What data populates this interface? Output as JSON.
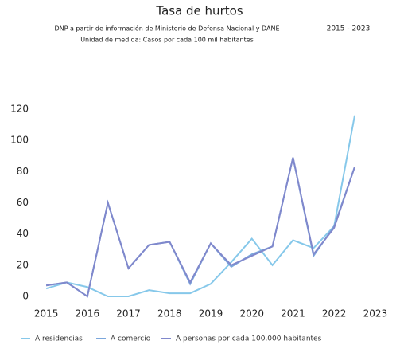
{
  "chart_data": {
    "type": "line",
    "title": "Tasa de hurtos",
    "subtitle": [
      "DNP a partir de información de Ministerio de Defensa Nacional y DANE",
      "Unidad de medida: Casos por cada 100 mil habitantes"
    ],
    "annotation": "2015 - 2023",
    "x": [
      2015,
      2015.5,
      2016,
      2016.5,
      2017,
      2017.5,
      2018,
      2018.5,
      2019,
      2019.5,
      2020,
      2020.5,
      2021,
      2021.5,
      2022,
      2022.5
    ],
    "series": [
      {
        "name": "A residencias",
        "color": "#86c8ea",
        "values": [
          5,
          9,
          6,
          0,
          0,
          4,
          2,
          2,
          8,
          22,
          37,
          20,
          36,
          31,
          45,
          116
        ]
      },
      {
        "name": "A comercio",
        "color": "#7ba7dc",
        "values": [
          7,
          9,
          0,
          60,
          18,
          33,
          35,
          8,
          34,
          19,
          27,
          32,
          89,
          26,
          45,
          83
        ]
      },
      {
        "name": "A personas por cada 100.000 habitantes",
        "color": "#8088cc",
        "values": [
          7,
          9,
          0,
          60,
          18,
          33,
          35,
          9,
          34,
          20,
          26,
          32,
          89,
          27,
          44,
          83
        ]
      }
    ],
    "xlim": [
      2014.65,
      2023.35
    ],
    "xticks": [
      2015,
      2016,
      2017,
      2018,
      2019,
      2020,
      2021,
      2022,
      2023
    ],
    "ylim": [
      0,
      120
    ],
    "yticks": [
      0,
      20,
      40,
      60,
      80,
      100,
      120
    ],
    "grid": false
  }
}
